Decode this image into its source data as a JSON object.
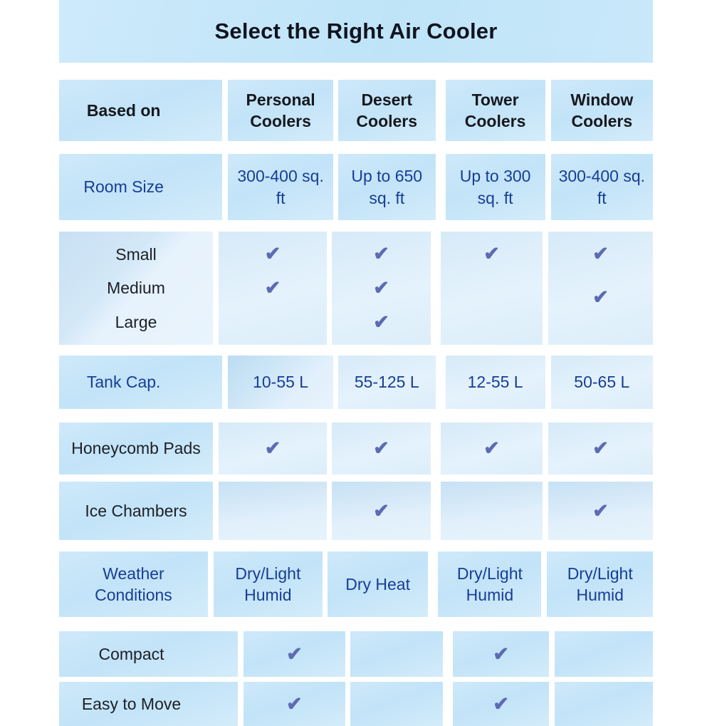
{
  "title": "Select the Right Air Cooler",
  "header": {
    "based_on": "Based on",
    "personal": "Personal Coolers",
    "desert": "Desert Coolers",
    "tower": "Tower Coolers",
    "window": "Window Coolers"
  },
  "icons": {
    "check": "✔"
  },
  "colors": {
    "navy_text": "#173d96",
    "dark_text": "#1d1f26",
    "check": "#5d6bb3",
    "cell_blue": "#c7e5f8",
    "cell_pale": "#e0effb",
    "title_band": "#c6e8f9"
  },
  "rows": {
    "room_size": {
      "label": "Room Size",
      "personal": "300-400 sq. ft",
      "desert": "Up to 650 sq. ft",
      "tower": "Up to 300 sq. ft",
      "window": "300-400 sq. ft"
    },
    "sizes": {
      "small_label": "Small",
      "medium_label": "Medium",
      "large_label": "Large",
      "checks": {
        "personal": {
          "small": "✔",
          "medium": "✔",
          "large": ""
        },
        "desert": {
          "small": "✔",
          "medium": "✔",
          "large": "✔"
        },
        "tower": {
          "small": "✔",
          "medium": "",
          "large": ""
        },
        "window": {
          "small": "✔",
          "medium": "✔",
          "large": ""
        }
      }
    },
    "tank": {
      "label": "Tank Cap.",
      "personal": "10-55 L",
      "desert": "55-125 L",
      "tower": "12-55 L",
      "window": "50-65 L"
    },
    "honeycomb": {
      "label": "Honeycomb Pads",
      "personal": "✔",
      "desert": "✔",
      "tower": "✔",
      "window": "✔"
    },
    "ice": {
      "label": "Ice Chambers",
      "personal": "",
      "desert": "✔",
      "tower": "",
      "window": "✔"
    },
    "weather": {
      "label": "Weather Conditions",
      "personal": "Dry/Light Humid",
      "desert": "Dry Heat",
      "tower": "Dry/Light Humid",
      "window": "Dry/Light Humid"
    },
    "compact": {
      "label": "Compact",
      "personal": "✔",
      "desert": "",
      "tower": "✔",
      "window": ""
    },
    "easy": {
      "label": "Easy to Move",
      "personal": "✔",
      "desert": "",
      "tower": "✔",
      "window": ""
    }
  }
}
